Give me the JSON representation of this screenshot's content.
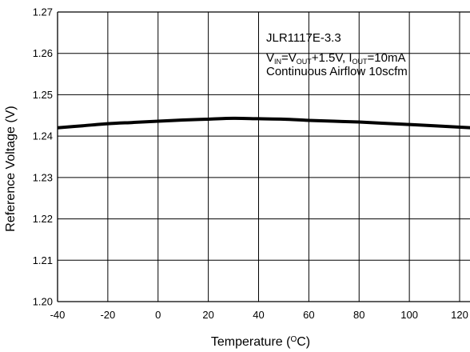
{
  "chart_data": {
    "type": "line",
    "title": "",
    "xlabel": {
      "main": "Temperature (",
      "sup": "O",
      "unit": "C)"
    },
    "ylabel": "Reference Voltage (V)",
    "xlim": [
      -40,
      125
    ],
    "ylim": [
      1.2,
      1.27
    ],
    "x_ticks": [
      -40,
      -20,
      0,
      20,
      40,
      60,
      80,
      100,
      120
    ],
    "x_tick_labels": [
      "-40",
      "-20",
      "0",
      "20",
      "40",
      "60",
      "80",
      "100",
      "120"
    ],
    "y_ticks": [
      1.2,
      1.21,
      1.22,
      1.23,
      1.24,
      1.25,
      1.26,
      1.27
    ],
    "y_tick_labels": [
      "1.20",
      "1.21",
      "1.22",
      "1.23",
      "1.24",
      "1.25",
      "1.26",
      "1.27"
    ],
    "grid": true,
    "annotation": {
      "line1": "JLR1117E-3.3",
      "line2": [
        {
          "t": "V",
          "s": "n"
        },
        {
          "t": "IN",
          "s": "sub"
        },
        {
          "t": "=V",
          "s": "n"
        },
        {
          "t": "OUT",
          "s": "sub"
        },
        {
          "t": "+1.5V, I",
          "s": "n"
        },
        {
          "t": "OUT",
          "s": "sub"
        },
        {
          "t": "=10mA",
          "s": "n"
        }
      ],
      "line3": "Continuous Airflow 10scfm"
    },
    "series": [
      {
        "x": [
          -40,
          -30,
          -20,
          -10,
          0,
          10,
          20,
          30,
          40,
          50,
          60,
          70,
          80,
          90,
          100,
          110,
          125
        ],
        "y": [
          1.242,
          1.2425,
          1.243,
          1.2433,
          1.2436,
          1.2439,
          1.2441,
          1.2443,
          1.2442,
          1.2441,
          1.2438,
          1.2436,
          1.2434,
          1.2431,
          1.2428,
          1.2425,
          1.242
        ]
      }
    ]
  }
}
